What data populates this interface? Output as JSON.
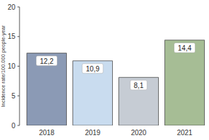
{
  "chart_data": {
    "type": "bar",
    "y_label": "Incidence rate/100.000 people-year",
    "categories": [
      "2018",
      "2019",
      "2020",
      "2021"
    ],
    "values": [
      12.2,
      10.9,
      8.1,
      14.4
    ],
    "value_labels": [
      "12,2",
      "10,9",
      "8,1",
      "14,4"
    ],
    "colors": [
      "#8b9ab5",
      "#c9dcef",
      "#c6ccd4",
      "#a6bd95"
    ],
    "ylim": [
      0,
      20
    ],
    "yticks": [
      0,
      5,
      10,
      15,
      20
    ],
    "grid": false,
    "data_labels": true
  }
}
